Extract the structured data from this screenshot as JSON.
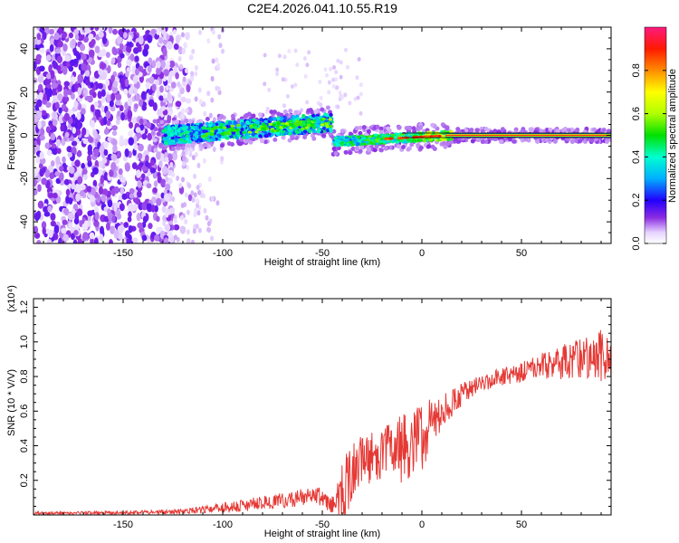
{
  "title": "C2E4.2026.041.10.55.R19",
  "chart_data": [
    {
      "type": "heatmap",
      "name": "spectrogram",
      "xlabel": "Height of straight line (km)",
      "ylabel": "Frequency (Hz)",
      "xlim": [
        -195,
        95
      ],
      "ylim": [
        -50,
        50
      ],
      "xticks": [
        -150,
        -100,
        -50,
        0,
        50
      ],
      "xtick_labels": [
        "-150",
        "-100",
        "-50",
        "0",
        "50"
      ],
      "yticks": [
        -40,
        -20,
        0,
        20,
        40
      ],
      "ytick_labels": [
        "-40",
        "-20",
        "0",
        "20",
        "40"
      ],
      "colorbar": {
        "label": "Normalized spectral amplitude",
        "range": [
          0,
          1
        ],
        "ticks": [
          0.0,
          0.2,
          0.4,
          0.6,
          0.8
        ],
        "tick_labels": [
          "0.0",
          "0.2",
          "0.4",
          "0.6",
          "0.8"
        ]
      },
      "features": [
        {
          "region": "noise",
          "x": [
            -195,
            -120
          ],
          "y": [
            -50,
            50
          ],
          "amplitude": 0.1
        },
        {
          "region": "band",
          "x": [
            -130,
            -45
          ],
          "y_center": [
            0,
            8
          ],
          "amplitude": 0.3
        },
        {
          "region": "band",
          "x": [
            -45,
            15
          ],
          "y_center": [
            -3,
            0
          ],
          "amplitude": 0.5
        },
        {
          "region": "line",
          "x": [
            15,
            95
          ],
          "y_center": 0,
          "amplitude": 0.9
        }
      ]
    },
    {
      "type": "line",
      "name": "snr",
      "xlabel": "Height of straight line (km)",
      "ylabel": "SNR (10 * V/V)",
      "scale_label": "(x10⁴)",
      "xlim": [
        -195,
        95
      ],
      "ylim": [
        0,
        1.25
      ],
      "xticks": [
        -150,
        -100,
        -50,
        0,
        50
      ],
      "xtick_labels": [
        "-150",
        "-100",
        "-50",
        "0",
        "50"
      ],
      "yticks": [
        0.2,
        0.4,
        0.6,
        0.8,
        1.0,
        1.2
      ],
      "ytick_labels": [
        "0.2",
        "0.4",
        "0.6",
        "0.8",
        "1.0",
        "1.2"
      ],
      "color": "#e53935",
      "envelope": {
        "x": [
          -195,
          -150,
          -120,
          -100,
          -80,
          -60,
          -50,
          -45,
          -40,
          -35,
          -30,
          -20,
          -10,
          0,
          10,
          20,
          30,
          40,
          50,
          60,
          70,
          80,
          90,
          95
        ],
        "mean": [
          0.01,
          0.012,
          0.02,
          0.04,
          0.07,
          0.1,
          0.1,
          0.06,
          0.1,
          0.25,
          0.32,
          0.35,
          0.38,
          0.45,
          0.6,
          0.7,
          0.76,
          0.8,
          0.83,
          0.86,
          0.88,
          0.9,
          0.92,
          0.95
        ],
        "amp": [
          0.008,
          0.01,
          0.015,
          0.03,
          0.04,
          0.05,
          0.06,
          0.05,
          0.2,
          0.2,
          0.15,
          0.15,
          0.2,
          0.2,
          0.1,
          0.07,
          0.05,
          0.05,
          0.06,
          0.08,
          0.1,
          0.12,
          0.15,
          0.15
        ]
      }
    }
  ]
}
